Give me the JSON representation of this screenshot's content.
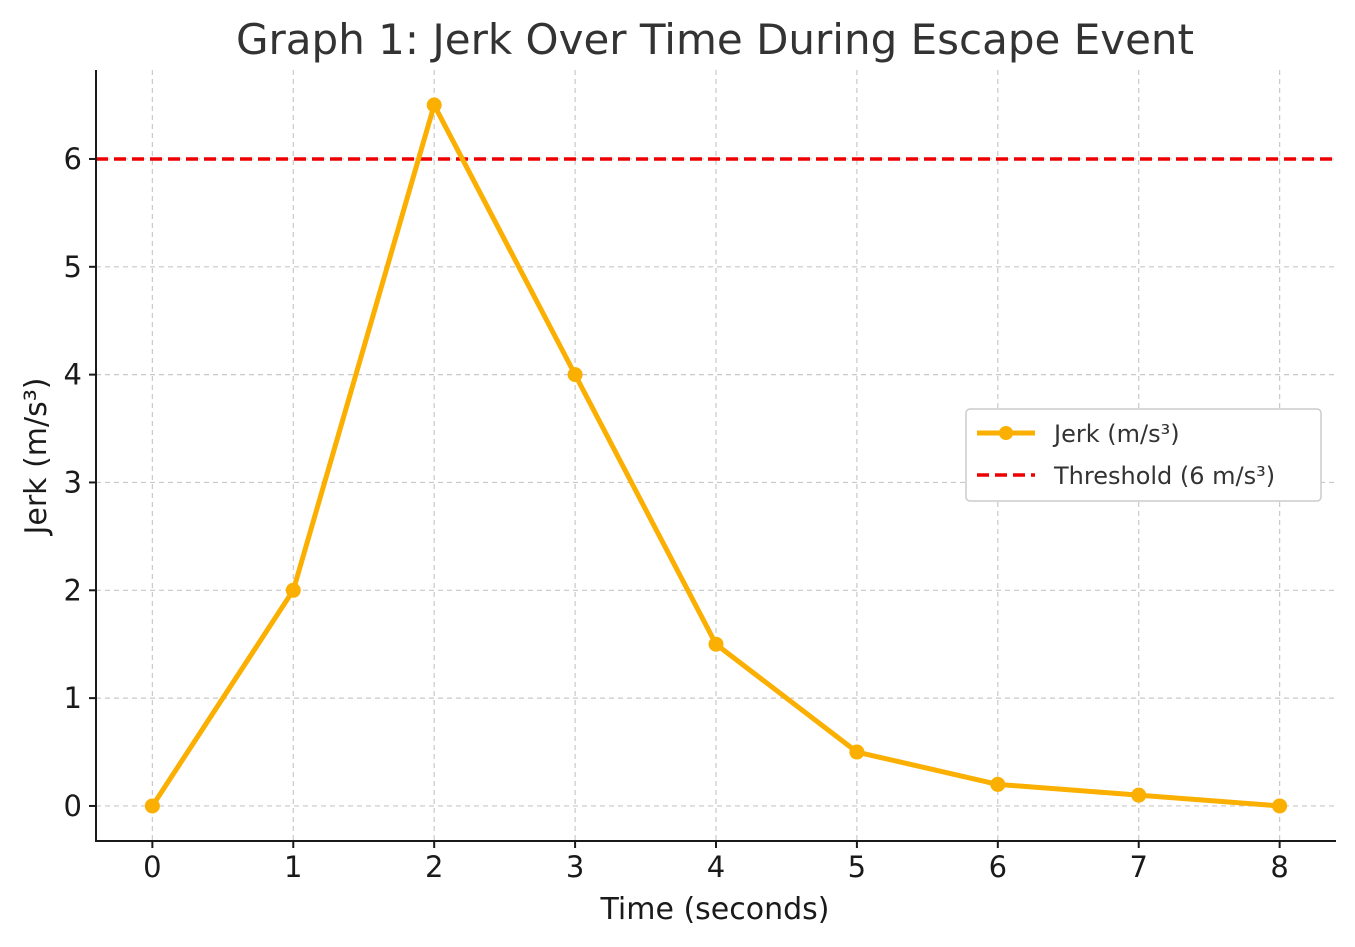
{
  "chart_data": {
    "type": "line",
    "title": "Graph 1: Jerk Over Time During Escape Event",
    "xlabel": "Time (seconds)",
    "ylabel": "Jerk (m/s³)",
    "x": [
      0,
      1,
      2,
      3,
      4,
      5,
      6,
      7,
      8
    ],
    "series": [
      {
        "name": "Jerk (m/s³)",
        "values": [
          0,
          2,
          6.5,
          4,
          1.5,
          0.5,
          0.2,
          0.1,
          0
        ],
        "color": "#FBAF00"
      }
    ],
    "threshold": {
      "name": "Threshold (6 m/s³)",
      "value": 6,
      "color": "#EE0000"
    },
    "xticks": [
      0,
      1,
      2,
      3,
      4,
      5,
      6,
      7,
      8
    ],
    "yticks": [
      0,
      1,
      2,
      3,
      4,
      5,
      6
    ],
    "xlim": [
      -0.4,
      8.4
    ],
    "ylim": [
      -0.325,
      6.825
    ],
    "grid": true,
    "legend_position": "center-right"
  }
}
